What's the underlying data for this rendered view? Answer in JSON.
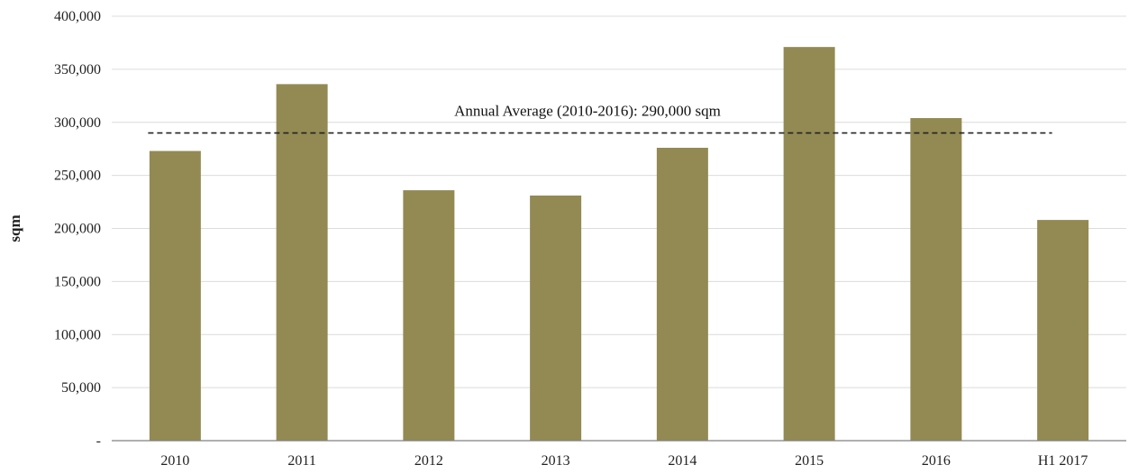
{
  "chart_data": {
    "type": "bar",
    "categories": [
      "2010",
      "2011",
      "2012",
      "2013",
      "2014",
      "2015",
      "2016",
      "H1 2017"
    ],
    "values": [
      273000,
      336000,
      236000,
      231000,
      276000,
      371000,
      304000,
      208000
    ],
    "ylabel": "sqm",
    "ylim": [
      0,
      400000
    ],
    "yticks": [
      0,
      50000,
      100000,
      150000,
      200000,
      250000,
      300000,
      350000,
      400000
    ],
    "ytick_labels": [
      "-",
      "50,000",
      "100,000",
      "150,000",
      "200,000",
      "250,000",
      "300,000",
      "350,000",
      "400,000"
    ],
    "grid": true,
    "reference_line": {
      "value": 290000,
      "label": "Annual Average (2010-2016): 290,000 sqm",
      "style": "dashed"
    },
    "colors": {
      "bar": "#938a53",
      "reference_line": "#222222"
    }
  }
}
